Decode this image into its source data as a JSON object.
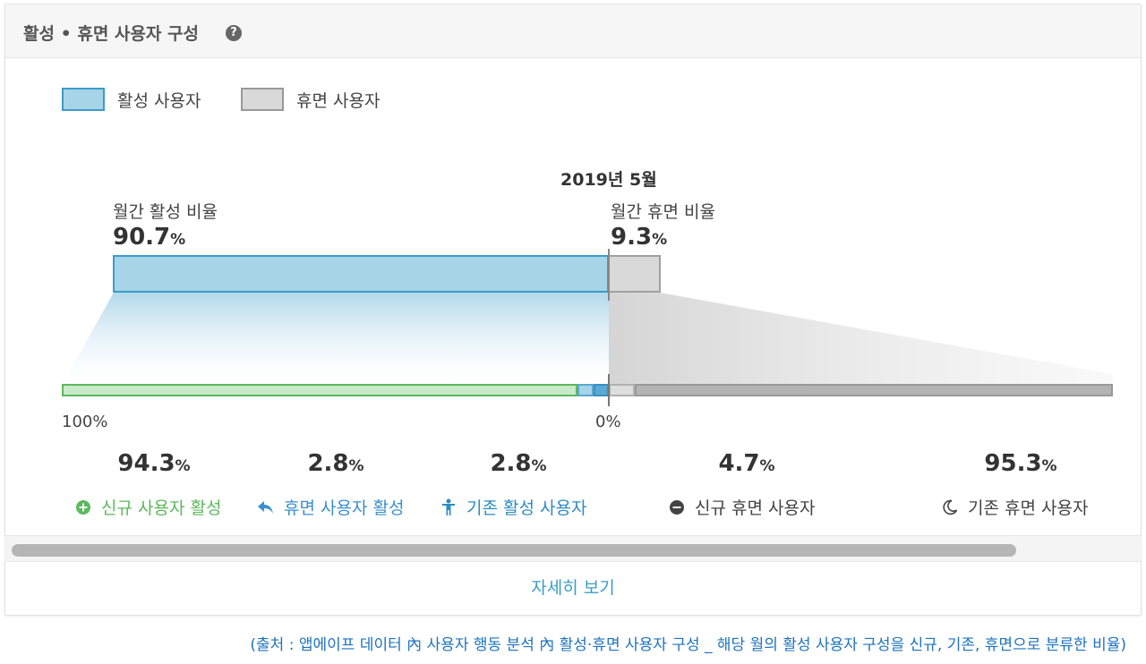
{
  "header": {
    "title": "활성 • 휴면 사용자 구성",
    "help_icon": "?"
  },
  "legend": {
    "active_label": "활성 사용자",
    "dormant_label": "휴면 사용자",
    "active_color": "#a8d4e8",
    "dormant_color": "#d9d9d9"
  },
  "period": "2019년 5월",
  "monthly": {
    "active_label": "월간 활성 비율",
    "active_value": "90.7",
    "dormant_label": "월간 휴면 비율",
    "dormant_value": "9.3",
    "unit": "%"
  },
  "axis": {
    "left": "100%",
    "center": "0%"
  },
  "stats": [
    {
      "value": "94.3",
      "unit": "%",
      "label": "신규 사용자 활성",
      "icon": "plus-circle-icon",
      "color": "#5cb85c"
    },
    {
      "value": "2.8",
      "unit": "%",
      "label": "휴면 사용자 활성",
      "icon": "reply-arrow-icon",
      "color": "#3a8fd0"
    },
    {
      "value": "2.8",
      "unit": "%",
      "label": "기존 활성 사용자",
      "icon": "person-icon",
      "color": "#2e8bc0"
    },
    {
      "value": "4.7",
      "unit": "%",
      "label": "신규 휴면 사용자",
      "icon": "minus-circle-icon",
      "color": "#444444"
    },
    {
      "value": "95.3",
      "unit": "%",
      "label": "기존 휴면 사용자",
      "icon": "moon-icon",
      "color": "#444444"
    }
  ],
  "footer": {
    "more_label": "자세히 보기"
  },
  "caption": "(출처 : 앱에이프 데이터 內 사용자 행동 분석 內  활성·휴면 사용자 구성 _ 해당 월의 활성 사용자 구성을 신규, 기존, 휴면으로 분류한 비율)"
}
